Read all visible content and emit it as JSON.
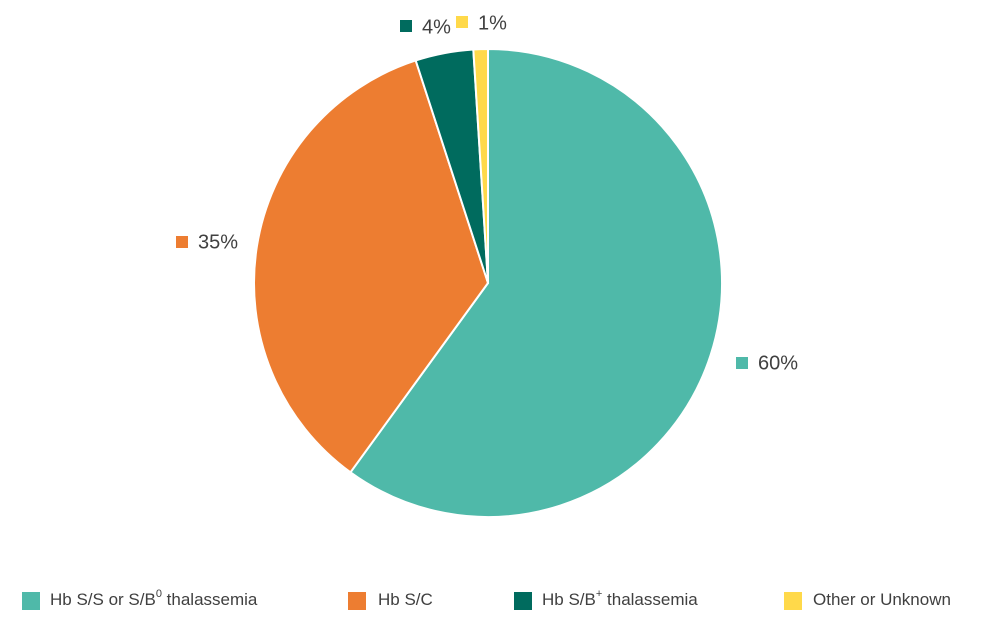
{
  "chart_data": {
    "type": "pie",
    "title": "",
    "start_angle_deg": 0,
    "direction": "clockwise",
    "slices": [
      {
        "label": "Hb S/S or S/B⁰ thalassemia",
        "legend_main": "Hb S/S or S/B",
        "legend_sup": "0",
        "legend_tail": " thalassemia",
        "value": 60,
        "display": "60%",
        "color": "#4FB9A9"
      },
      {
        "label": "Hb S/C",
        "legend_main": "Hb S/C",
        "legend_sup": "",
        "legend_tail": "",
        "value": 35,
        "display": "35%",
        "color": "#ED7D31"
      },
      {
        "label": "Hb S/B⁺ thalassemia",
        "legend_main": "Hb S/B",
        "legend_sup": "+",
        "legend_tail": " thalassemia",
        "value": 4,
        "display": "4%",
        "color": "#006B5E"
      },
      {
        "label": "Other or Unknown",
        "legend_main": "Other or Unknown",
        "legend_sup": "",
        "legend_tail": "",
        "value": 1,
        "display": "1%",
        "color": "#FFD94A"
      }
    ],
    "legend_position": "bottom",
    "data_label_color": "#404040"
  }
}
